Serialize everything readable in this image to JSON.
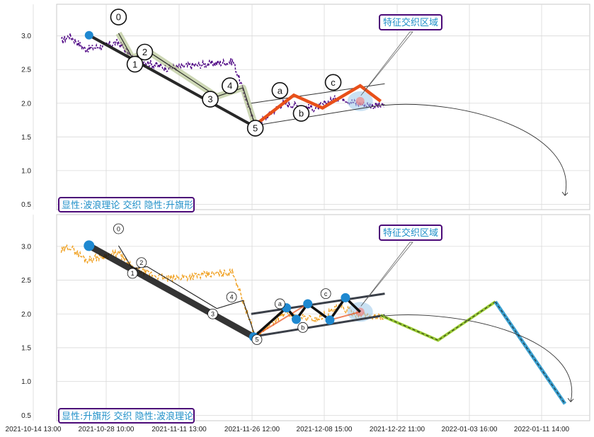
{
  "chart_data": {
    "type": "line",
    "x_ticks": [
      "2021-10-14 13:00",
      "2021-10-28 10:00",
      "2021-11-11 13:00",
      "2021-11-26 12:00",
      "2021-12-08 15:00",
      "2021-12-22 11:00",
      "2022-01-03 16:00",
      "2022-01-11 14:00"
    ],
    "y_ticks": [
      "0.5",
      "1.0",
      "1.5",
      "2.0",
      "2.5",
      "3.0"
    ],
    "ylim": [
      0.42,
      3.47
    ],
    "grid": true,
    "panels": [
      {
        "box_label": "显性:波浪理论 交织 隐性:升旗形",
        "region_label": "特征交织区域",
        "price_color": "#4b0082",
        "wave_labels": [
          "0",
          "1",
          "2",
          "3",
          "4",
          "5",
          "a",
          "b",
          "c"
        ],
        "impulse_points": [
          [
            24,
            3.01
          ],
          [
            225,
            1.66
          ]
        ],
        "impulse_subwave": [
          [
            60,
            3.04
          ],
          [
            77,
            2.67
          ],
          [
            95,
            2.78
          ],
          [
            180,
            2.1
          ],
          [
            212,
            2.23
          ],
          [
            227,
            1.66
          ]
        ],
        "correction": [
          [
            225,
            1.66
          ],
          [
            274,
            2.12
          ],
          [
            309,
            1.93
          ],
          [
            355,
            2.26
          ],
          [
            380,
            2.03
          ]
        ],
        "channel_upper": [
          [
            222,
            2.0
          ],
          [
            385,
            2.29
          ]
        ],
        "channel_lower": [
          [
            222,
            1.66
          ],
          [
            385,
            1.98
          ]
        ],
        "forecast_arc_end": [
          605,
          0.63
        ]
      },
      {
        "box_label": "显性:升旗形 交织 隐性:波浪理论",
        "region_label": "特征交织区域",
        "price_color": "#f0a020",
        "wave_labels": [
          "0",
          "1",
          "2",
          "3",
          "4",
          "5",
          "a",
          "b",
          "c"
        ],
        "impulse_points": [
          [
            24,
            3.01
          ],
          [
            225,
            1.66
          ]
        ],
        "impulse_subwave": [
          [
            60,
            3.01
          ],
          [
            77,
            2.67
          ],
          [
            95,
            2.7
          ],
          [
            180,
            2.08
          ],
          [
            212,
            2.2
          ],
          [
            227,
            1.66
          ]
        ],
        "flag_points": [
          [
            225,
            1.66
          ],
          [
            265,
            2.09
          ],
          [
            277,
            1.92
          ],
          [
            291,
            2.15
          ],
          [
            318,
            1.91
          ],
          [
            337,
            2.24
          ],
          [
            355,
            2.03
          ]
        ],
        "channel_upper": [
          [
            222,
            2.0
          ],
          [
            385,
            2.3
          ]
        ],
        "channel_lower": [
          [
            222,
            1.66
          ],
          [
            385,
            1.98
          ]
        ],
        "forecast_zigzag": [
          [
            380,
            1.98
          ],
          [
            450,
            1.61
          ],
          [
            520,
            2.18
          ],
          [
            605,
            0.67
          ]
        ],
        "forecast_arc_end": [
          612,
          0.7
        ]
      }
    ]
  }
}
